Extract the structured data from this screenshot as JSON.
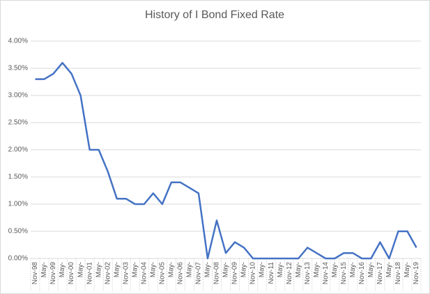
{
  "chart_data": {
    "type": "line",
    "title": "History of I Bond Fixed Rate",
    "categories": [
      "Nov-98",
      "May-",
      "Nov-99",
      "May-",
      "Nov-00",
      "May-",
      "Nov-01",
      "May-",
      "Nov-02",
      "May-",
      "Nov-03",
      "May-",
      "Nov-04",
      "May-",
      "Nov-05",
      "May-",
      "Nov-06",
      "May-",
      "Nov-07",
      "May-",
      "Nov-08",
      "May-",
      "Nov-09",
      "May-",
      "Nov-10",
      "May-",
      "Nov-11",
      "May-",
      "Nov-12",
      "May-",
      "Nov-13",
      "May-",
      "Nov-14",
      "May-",
      "Nov-15",
      "May-",
      "Nov-16",
      "May-",
      "Nov-17",
      "May-",
      "Nov-18",
      "May-",
      "Nov-19"
    ],
    "series": [
      {
        "color": "#4472c4",
        "values": [
          3.3,
          3.3,
          3.4,
          3.6,
          3.4,
          3.0,
          2.0,
          2.0,
          1.6,
          1.1,
          1.1,
          1.0,
          1.0,
          1.2,
          1.0,
          1.4,
          1.4,
          1.3,
          1.2,
          0.0,
          0.7,
          0.1,
          0.3,
          0.2,
          0.0,
          0.0,
          0.0,
          0.0,
          0.0,
          0.0,
          0.2,
          0.1,
          0.0,
          0.0,
          0.1,
          0.1,
          0.0,
          0.0,
          0.3,
          0.0,
          0.5,
          0.5,
          0.2
        ]
      }
    ],
    "ylim": [
      0,
      4
    ],
    "yticks": [
      {
        "value": 0,
        "label": "0.00%"
      },
      {
        "value": 0.5,
        "label": "0.50%"
      },
      {
        "value": 1,
        "label": "1.00%"
      },
      {
        "value": 1.5,
        "label": "1.50%"
      },
      {
        "value": 2,
        "label": "2.00%"
      },
      {
        "value": 2.5,
        "label": "2.50%"
      },
      {
        "value": 3,
        "label": "3.00%"
      },
      {
        "value": 3.5,
        "label": "3.50%"
      },
      {
        "value": 4,
        "label": "4.00%"
      }
    ],
    "grid": true
  }
}
